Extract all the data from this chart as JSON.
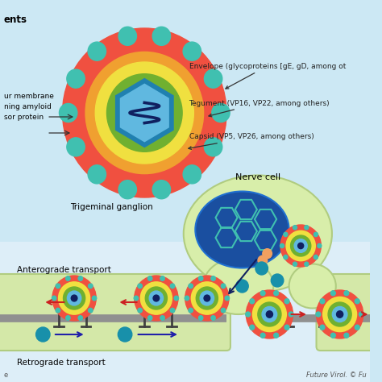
{
  "bg_top": "#cce8f4",
  "bg_bottom": "#ddeebb",
  "axon_fill": "#d4e8a8",
  "axon_stroke": "#b0cc80",
  "nerve_fill": "#d8eeaa",
  "nerve_stroke": "#b0cc80",
  "nucleus_fill": "#1a4fa0",
  "nucleus_stroke": "#2070d0",
  "colors": {
    "env_red": "#f05040",
    "teg_orange": "#f0a030",
    "teg_yellow": "#f0e040",
    "cap_green": "#70b030",
    "cap_hex_fill": "#60b8e0",
    "cap_hex_edge": "#2080b0",
    "dna_color": "#102060",
    "spike_teal": "#40c0b0",
    "hex_nucleus": "#40c0b0",
    "arrow_red": "#cc2020",
    "arrow_blue": "#2020aa",
    "particle_teal": "#1890aa",
    "motor_dark": "#404040",
    "microtubule": "#909090",
    "pink_wave": "#e080a0",
    "orange_hand": "#f0a060"
  },
  "labels": {
    "top_left1": "ents",
    "top_left2": "ur membrane\nning amyloid\nsor protein",
    "envelope": "Envelope (glycoproteins [gE, gD, among ot",
    "tegument": "Tegument (VP16, VP22, among others)",
    "capsid": "Capsid (VP5, VP26, among others)",
    "trigeminal": "Trigeminal ganglion",
    "anterograde": "Anterograde transport",
    "retrograde": "Retrograde transport",
    "nerve": "Nerve cell",
    "footer_left": "e",
    "footer_right": "Future Virol. © Fu"
  }
}
